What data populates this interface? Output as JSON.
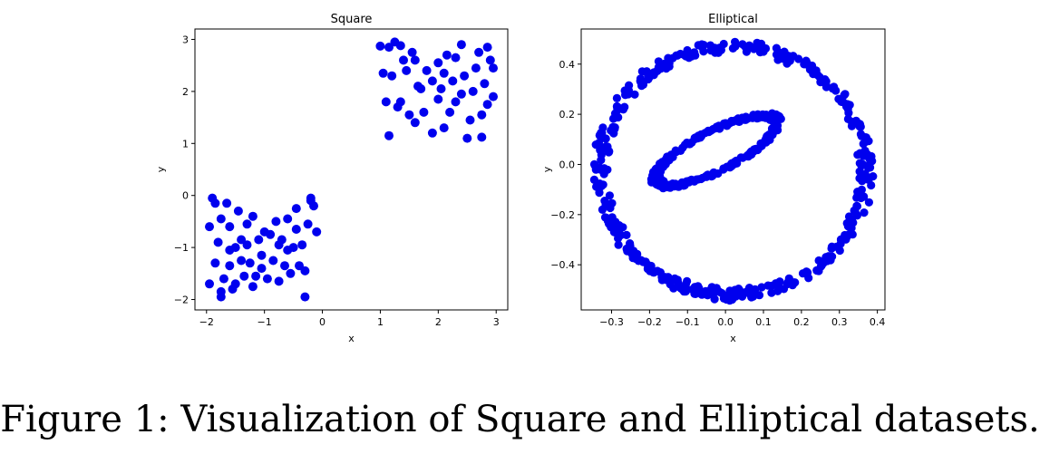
{
  "caption": "Figure 1: Visualization of Square and Elliptical datasets.",
  "colors": {
    "marker": "#0000ee",
    "axes": "#000000",
    "background": "#ffffff"
  },
  "chart_data": [
    {
      "type": "scatter",
      "title": "Square",
      "xlabel": "x",
      "ylabel": "y",
      "xlim": [
        -2.2,
        3.2
      ],
      "ylim": [
        -2.2,
        3.2
      ],
      "xticks": [
        -2,
        -1,
        0,
        1,
        2,
        3
      ],
      "yticks": [
        -2,
        -1,
        0,
        1,
        2,
        3
      ],
      "xtick_labels": [
        "−2",
        "−1",
        "0",
        "1",
        "2",
        "3"
      ],
      "ytick_labels": [
        "−2",
        "−1",
        "0",
        "1",
        "2",
        "3"
      ],
      "grid": false,
      "series": [
        {
          "points": [
            [
              1.0,
              2.87
            ],
            [
              1.15,
              2.85
            ],
            [
              1.25,
              2.95
            ],
            [
              1.35,
              2.88
            ],
            [
              1.55,
              2.75
            ],
            [
              1.8,
              2.4
            ],
            [
              2.0,
              2.55
            ],
            [
              2.15,
              2.7
            ],
            [
              2.3,
              2.65
            ],
            [
              2.4,
              2.9
            ],
            [
              2.7,
              2.75
            ],
            [
              2.85,
              2.85
            ],
            [
              2.9,
              2.6
            ],
            [
              2.95,
              2.45
            ],
            [
              1.05,
              2.35
            ],
            [
              1.2,
              2.3
            ],
            [
              1.45,
              2.4
            ],
            [
              1.65,
              2.1
            ],
            [
              1.9,
              2.2
            ],
            [
              2.1,
              2.35
            ],
            [
              2.25,
              2.2
            ],
            [
              2.45,
              2.3
            ],
            [
              2.6,
              2.0
            ],
            [
              2.8,
              2.15
            ],
            [
              2.95,
              1.9
            ],
            [
              1.1,
              1.8
            ],
            [
              1.3,
              1.7
            ],
            [
              1.5,
              1.55
            ],
            [
              1.75,
              1.6
            ],
            [
              2.0,
              1.85
            ],
            [
              2.2,
              1.6
            ],
            [
              2.4,
              1.95
            ],
            [
              2.55,
              1.45
            ],
            [
              2.75,
              1.55
            ],
            [
              2.85,
              1.75
            ],
            [
              1.15,
              1.15
            ],
            [
              1.6,
              1.4
            ],
            [
              1.9,
              1.2
            ],
            [
              2.1,
              1.3
            ],
            [
              2.5,
              1.1
            ],
            [
              2.75,
              1.12
            ],
            [
              1.4,
              2.6
            ],
            [
              1.7,
              2.05
            ],
            [
              2.05,
              2.05
            ],
            [
              2.65,
              2.45
            ],
            [
              1.35,
              1.8
            ],
            [
              1.6,
              2.6
            ],
            [
              2.3,
              1.8
            ],
            [
              -1.9,
              -0.05
            ],
            [
              -1.85,
              -0.15
            ],
            [
              -1.65,
              -0.15
            ],
            [
              -1.75,
              -0.45
            ],
            [
              -1.6,
              -0.6
            ],
            [
              -1.4,
              -0.85
            ],
            [
              -1.2,
              -0.4
            ],
            [
              -1.0,
              -0.7
            ],
            [
              -0.8,
              -0.5
            ],
            [
              -0.6,
              -0.45
            ],
            [
              -0.45,
              -0.65
            ],
            [
              -0.2,
              -0.1
            ],
            [
              -0.15,
              -0.2
            ],
            [
              -0.25,
              -0.55
            ],
            [
              -0.1,
              -0.7
            ],
            [
              -1.95,
              -0.6
            ],
            [
              -1.8,
              -0.9
            ],
            [
              -1.5,
              -1.0
            ],
            [
              -1.3,
              -0.95
            ],
            [
              -1.1,
              -0.85
            ],
            [
              -0.9,
              -0.75
            ],
            [
              -0.7,
              -0.85
            ],
            [
              -0.5,
              -1.0
            ],
            [
              -0.35,
              -0.95
            ],
            [
              -1.85,
              -1.3
            ],
            [
              -1.6,
              -1.35
            ],
            [
              -1.4,
              -1.25
            ],
            [
              -1.25,
              -1.3
            ],
            [
              -1.05,
              -1.15
            ],
            [
              -0.85,
              -1.25
            ],
            [
              -0.6,
              -1.05
            ],
            [
              -0.4,
              -1.35
            ],
            [
              -1.95,
              -1.7
            ],
            [
              -1.7,
              -1.6
            ],
            [
              -1.5,
              -1.7
            ],
            [
              -1.35,
              -1.55
            ],
            [
              -1.15,
              -1.55
            ],
            [
              -0.95,
              -1.6
            ],
            [
              -0.75,
              -1.65
            ],
            [
              -0.55,
              -1.5
            ],
            [
              -0.3,
              -1.45
            ],
            [
              -1.75,
              -1.85
            ],
            [
              -1.55,
              -1.8
            ],
            [
              -0.3,
              -1.95
            ],
            [
              -1.75,
              -1.95
            ],
            [
              -1.3,
              -0.55
            ],
            [
              -0.75,
              -0.95
            ],
            [
              -0.45,
              -0.25
            ],
            [
              -1.45,
              -0.3
            ],
            [
              -1.05,
              -1.4
            ],
            [
              -0.2,
              -0.05
            ],
            [
              -1.6,
              -1.05
            ],
            [
              -0.65,
              -1.35
            ],
            [
              -1.2,
              -1.75
            ]
          ]
        }
      ]
    },
    {
      "type": "scatter",
      "title": "Elliptical",
      "xlabel": "x",
      "ylabel": "y",
      "xlim": [
        -0.38,
        0.42
      ],
      "ylim": [
        -0.58,
        0.54
      ],
      "xticks": [
        -0.3,
        -0.2,
        -0.1,
        0.0,
        0.1,
        0.2,
        0.3,
        0.4
      ],
      "yticks": [
        -0.4,
        -0.2,
        0.0,
        0.2,
        0.4
      ],
      "xtick_labels": [
        "−0.3",
        "−0.2",
        "−0.1",
        "0.0",
        "0.1",
        "0.2",
        "0.3",
        "0.4"
      ],
      "ytick_labels": [
        "−0.4",
        "−0.2",
        "0.0",
        "0.2",
        "0.4"
      ],
      "grid": false,
      "series": [
        {
          "name": "outer ring",
          "shape": "ring",
          "center": [
            0.02,
            -0.025
          ],
          "radius_x": [
            0.33,
            0.37
          ],
          "radius_y": [
            0.47,
            0.52
          ],
          "count": 420
        },
        {
          "name": "inner ellipse",
          "shape": "tilted ellipse",
          "center": [
            -0.025,
            0.055
          ],
          "semi_major": 0.2,
          "semi_minor": 0.07,
          "angle_deg": 40,
          "count": 260
        }
      ]
    }
  ]
}
